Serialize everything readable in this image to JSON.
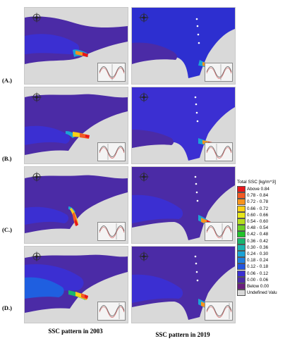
{
  "row_labels": [
    "(A.)",
    "(B.)",
    "(C.)",
    "(D.)"
  ],
  "captions": {
    "left": "SSC pattern in 2003",
    "right": "SSC pattern in 2019"
  },
  "legend": {
    "title": "Total SSC [kg/m^3]",
    "items": [
      {
        "label": "Above 0.84",
        "color": "#e8161b"
      },
      {
        "label": "0.78 - 0.84",
        "color": "#f25a24"
      },
      {
        "label": "0.72 - 0.78",
        "color": "#f7941d"
      },
      {
        "label": "0.66 - 0.72",
        "color": "#fbd016"
      },
      {
        "label": "0.60 - 0.66",
        "color": "#e6e61a"
      },
      {
        "label": "0.54 - 0.60",
        "color": "#b5dc1e"
      },
      {
        "label": "0.48 - 0.54",
        "color": "#6ccf25"
      },
      {
        "label": "0.42 - 0.48",
        "color": "#22c22b"
      },
      {
        "label": "0.36 - 0.42",
        "color": "#19b56e"
      },
      {
        "label": "0.30 - 0.36",
        "color": "#1bb3b0"
      },
      {
        "label": "0.24 - 0.30",
        "color": "#1ba3d6"
      },
      {
        "label": "0.18 - 0.24",
        "color": "#1f7fe0"
      },
      {
        "label": "0.12 - 0.18",
        "color": "#2355e0"
      },
      {
        "label": "0.06 - 0.12",
        "color": "#3b2fd2"
      },
      {
        "label": "0.00 - 0.06",
        "color": "#4b2ba6"
      },
      {
        "label": "Below 0.00",
        "color": "#6a1f7e"
      },
      {
        "label": "Undefined Valu",
        "color": "#d9d9d9"
      }
    ]
  }
}
